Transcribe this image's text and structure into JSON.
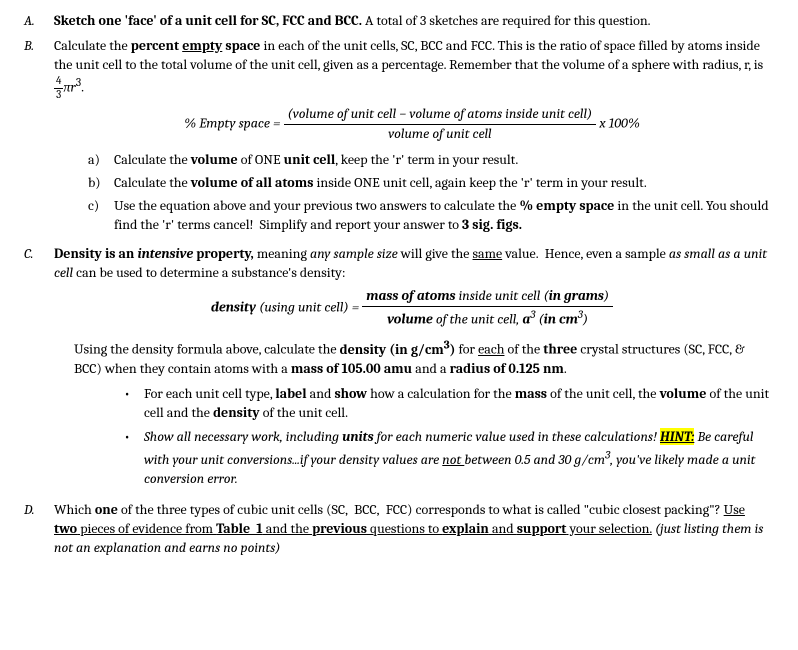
{
  "A": {
    "label": "A.",
    "text": "<span class=\"indent\"></span><b>Sketch one 'face' of a unit cell for SC, FCC and BCC.</b> A total of 3 sketches are required for this question."
  },
  "B": {
    "label": "B.",
    "intro": "<span class=\"indent\"></span>Calculate the <b>percent <u>empty</u> space</b> in each of the unit cells, SC, BCC and FCC. This is the ratio of space filled by atoms inside the unit cell to the total volume of the unit cell, given as a percentage. Remember that the volume of a sphere with radius, r, is <span class=\"sfrac\"><span class=\"num\">4</span><span class=\"den\">3</span></span><span class=\"m\">&pi;r</span><sup>3</sup>.",
    "formula_left": "% <i>Empty space</i> =",
    "formula_num": "(volume of unit cell &minus; volume of atoms inside unit cell)",
    "formula_den": "volume of unit cell",
    "formula_right": "x 100%",
    "a": {
      "label": "a)",
      "text": "Calculate the <b>volume</b> of ONE <b>unit cell</b>, keep the 'r' term in your result."
    },
    "b": {
      "label": "b)",
      "text": "Calculate the <b>volume of all atoms</b> inside ONE unit cell, again keep the 'r' term in your result."
    },
    "c": {
      "label": "c)",
      "text": "Use the equation above and your previous two answers to calculate the <b>% empty space</b> in the unit cell. You should find the 'r' terms cancel!&nbsp; Simplify and report your answer to <b>3 sig. figs.</b>"
    }
  },
  "C": {
    "label": "C.",
    "intro": "<span class=\"indent\"></span><b>Density is an <i>intensive</i> property,</b> meaning <i>any sample size</i> will give the <u>same</u> value.&nbsp; Hence, even a sample <i>as small as a unit cell</i> can be used to determine a substance's density:",
    "formula_left": "<b><i>density</i></b> (<i>using unit cell</i>) =",
    "formula_num": "<b><i>mass of atoms</i></b> <i>inside unit cell</i> (<b><i>in grams</i></b>)",
    "formula_den": "<b><i>volume</i></b> <i>of the unit cell,</i> <b><i>a</i></b><sup>3</sup> (<b><i>in cm</i></b><sup>3</sup>)",
    "para2": "Using the density formula above, calculate the <b>density (in g/cm<sup>3</sup>)</b> for <u>each</u> of the <b>three</b> crystal structures (SC, FCC, &amp; BCC) when they  contain atoms with a <b>mass of 105.00 amu</b> and a <b>radius of 0.125 nm</b>.",
    "bullet1": "For each unit cell type, <b>label</b> and <b>show</b> how a calculation for the <b>mass</b> of the unit cell, the <b>volume</b> of the unit cell and the <b>density</b> of the unit cell.",
    "bullet2": "<i>Show all necessary work, including <b>units</b> for each numeric value used in these calculations! <span class=\"hl\"><b><u>HINT:</u></b></span> Be careful with your unit conversions...if your density values are <u>not </u>between 0.5 and 30 g/cm<sup>3</sup>, you've likely made a unit conversion error.</i>"
  },
  "D": {
    "label": "D.",
    "text": "<span class=\"indent\"></span>Which <b>one</b> of the three types of cubic unit cells (SC,&nbsp; BCC,&nbsp; FCC) corresponds to what is called \"cubic closest packing\"? <u>Use <b>two</b> pieces of evidence from <b>Table&nbsp; 1</b> and the <b>previous</b> questions to <b>explain</b> and <b>support</b> your selection.</u> <i>(just listing them is not an explanation and earns no points)</i>"
  }
}
